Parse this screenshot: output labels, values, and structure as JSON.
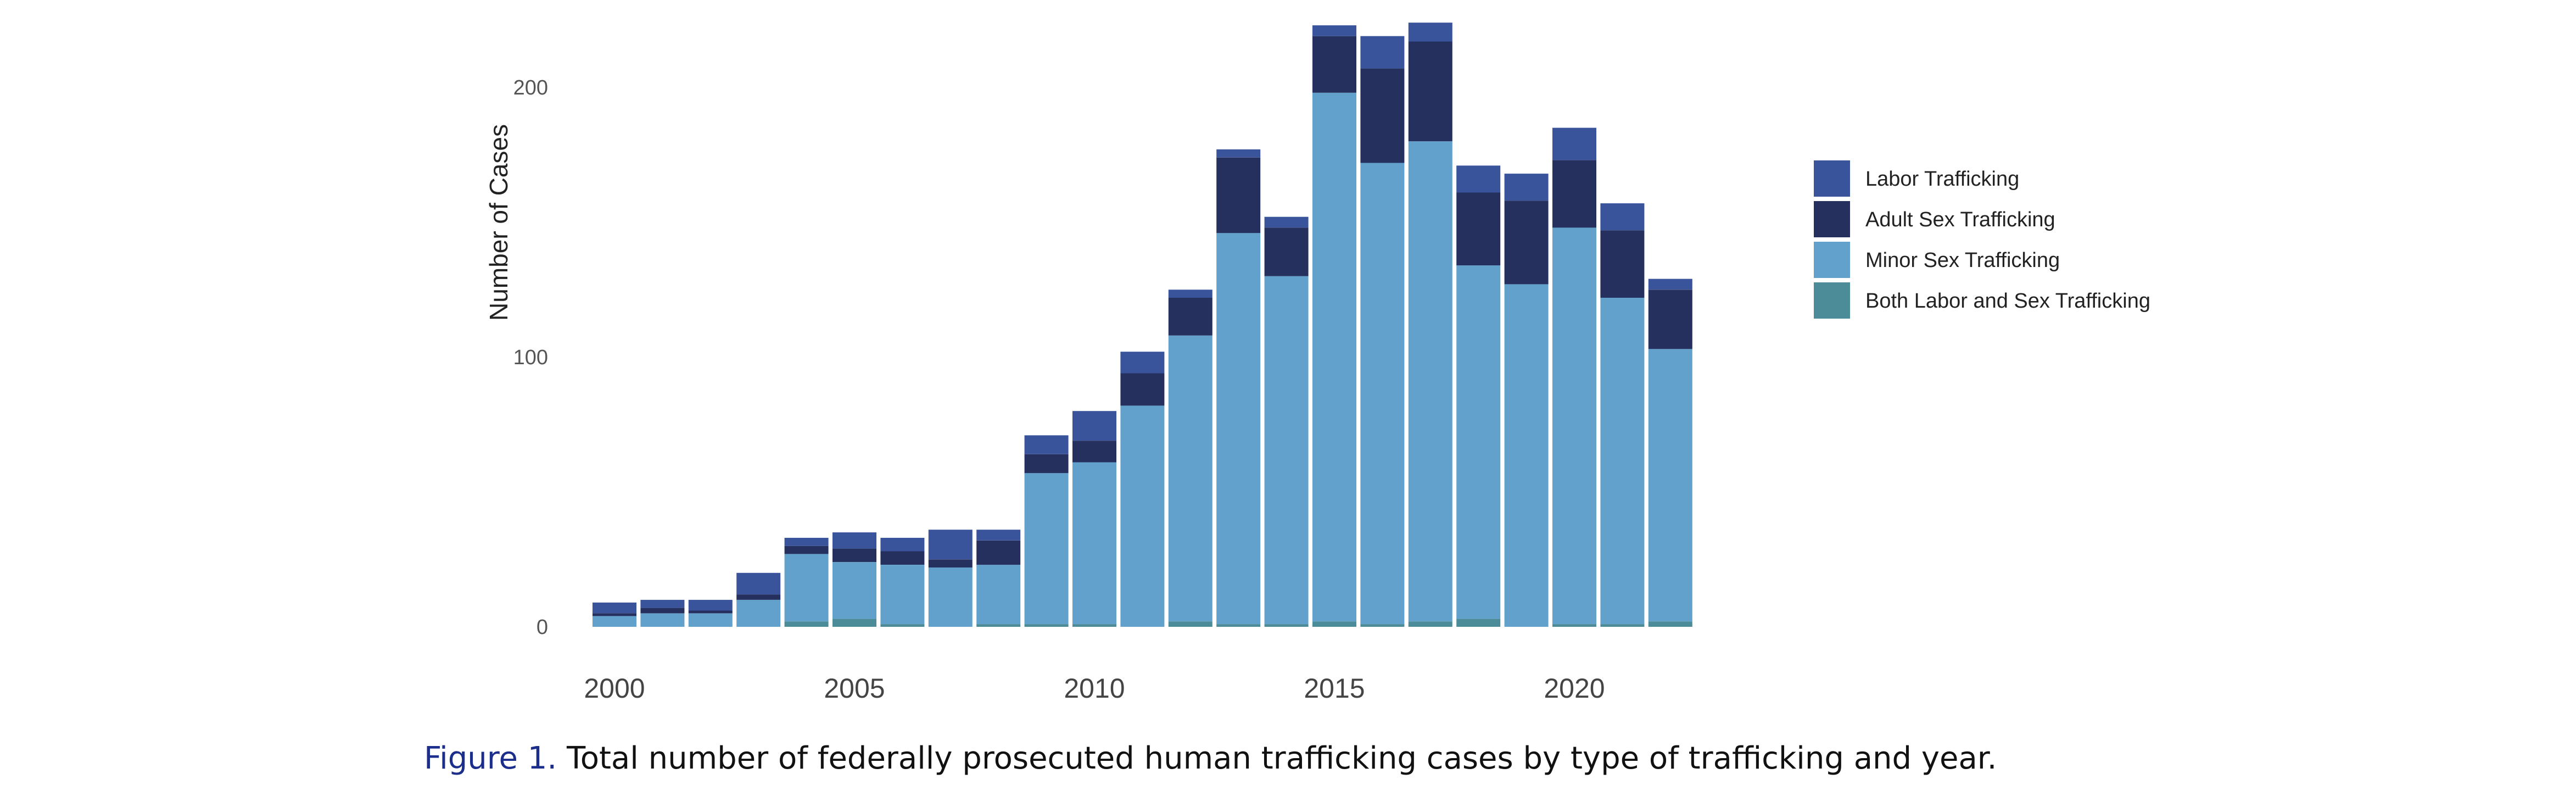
{
  "chart_data": {
    "type": "bar",
    "stacked": true,
    "title": "",
    "xlabel": "",
    "ylabel": "Number of Cases",
    "ylim": [
      0,
      223
    ],
    "y_ticks": [
      0,
      100,
      200
    ],
    "x_ticks": [
      2000,
      2005,
      2010,
      2015,
      2020
    ],
    "categories": [
      2000,
      2001,
      2002,
      2003,
      2004,
      2005,
      2006,
      2007,
      2008,
      2009,
      2010,
      2011,
      2012,
      2013,
      2014,
      2015,
      2016,
      2017,
      2018,
      2019,
      2020,
      2021,
      2022
    ],
    "series": [
      {
        "name": "Both Labor and Sex Trafficking",
        "color": "#4c8b98",
        "values": [
          0,
          0,
          0,
          0,
          2,
          3,
          1,
          0,
          1,
          1,
          1,
          0,
          2,
          1,
          1,
          2,
          1,
          2,
          3,
          0,
          1,
          1,
          2
        ]
      },
      {
        "name": "Minor Sex Trafficking",
        "color": "#62a1cb",
        "values": [
          4,
          5,
          5,
          10,
          25,
          21,
          22,
          22,
          22,
          56,
          60,
          82,
          106,
          145,
          129,
          196,
          171,
          178,
          131,
          127,
          147,
          121,
          101
        ]
      },
      {
        "name": "Adult Sex Trafficking",
        "color": "#25305f",
        "values": [
          1,
          2,
          1,
          2,
          3,
          5,
          5,
          3,
          9,
          7,
          8,
          12,
          14,
          28,
          18,
          21,
          35,
          37,
          27,
          31,
          25,
          25,
          22
        ]
      },
      {
        "name": "Labor Trafficking",
        "color": "#3a549c",
        "values": [
          4,
          3,
          4,
          8,
          3,
          6,
          5,
          11,
          4,
          7,
          11,
          8,
          3,
          3,
          4,
          4,
          12,
          7,
          10,
          10,
          12,
          10,
          4
        ]
      }
    ],
    "legend_order": [
      "Labor Trafficking",
      "Adult Sex Trafficking",
      "Minor Sex Trafficking",
      "Both Labor and Sex Trafficking"
    ],
    "legend_position": "right"
  },
  "caption": {
    "label": "Figure 1.",
    "text": " Total number of federally prosecuted human trafficking cases by type of trafficking and year."
  }
}
